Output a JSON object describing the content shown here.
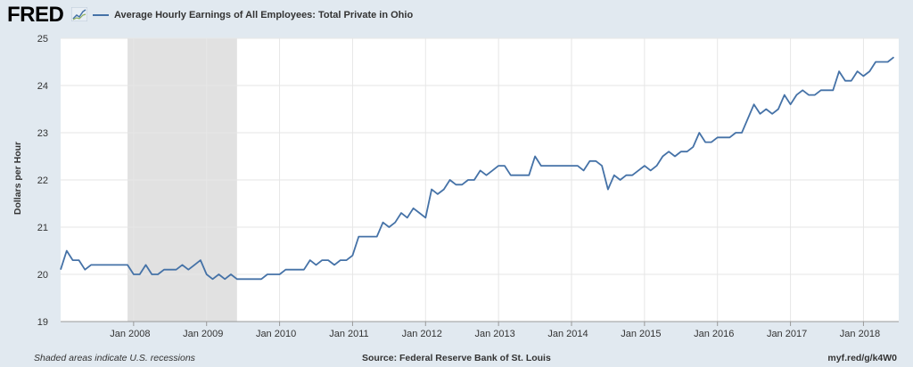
{
  "header": {
    "logo": "FRED",
    "legend_label": "Average Hourly Earnings of All Employees: Total Private in Ohio"
  },
  "footer": {
    "note": "Shaded areas indicate U.S. recessions",
    "source": "Source: Federal Reserve Bank of St. Louis",
    "link": "myf.red/g/k4W0"
  },
  "colors": {
    "series": "#4572a7",
    "recession": "#e1e1e1",
    "background": "#e1e9f0",
    "plot": "#ffffff",
    "grid": "#e6e6e6"
  },
  "chart_data": {
    "type": "line",
    "title": "",
    "xlabel": "",
    "ylabel": "Dollars per Hour",
    "ylim": [
      19,
      25
    ],
    "yticks": [
      "19",
      "20",
      "21",
      "22",
      "23",
      "24",
      "25"
    ],
    "xticks": [
      "Jan 2008",
      "Jan 2009",
      "Jan 2010",
      "Jan 2011",
      "Jan 2012",
      "Jan 2013",
      "Jan 2014",
      "Jan 2015",
      "Jan 2016",
      "Jan 2017",
      "Jan 2018"
    ],
    "grid": true,
    "legend": "top-left",
    "recessions": [
      {
        "start": "2007-12",
        "end": "2009-06"
      }
    ],
    "series": [
      {
        "name": "Average Hourly Earnings of All Employees: Total Private in Ohio",
        "start": "2007-01",
        "frequency": "monthly",
        "values": [
          20.1,
          20.5,
          20.3,
          20.3,
          20.1,
          20.2,
          20.2,
          20.2,
          20.2,
          20.2,
          20.2,
          20.2,
          20.0,
          20.0,
          20.2,
          20.0,
          20.0,
          20.1,
          20.1,
          20.1,
          20.2,
          20.1,
          20.2,
          20.3,
          20.0,
          19.9,
          20.0,
          19.9,
          20.0,
          19.9,
          19.9,
          19.9,
          19.9,
          19.9,
          20.0,
          20.0,
          20.0,
          20.1,
          20.1,
          20.1,
          20.1,
          20.3,
          20.2,
          20.3,
          20.3,
          20.2,
          20.3,
          20.3,
          20.4,
          20.8,
          20.8,
          20.8,
          20.8,
          21.1,
          21.0,
          21.1,
          21.3,
          21.2,
          21.4,
          21.3,
          21.2,
          21.8,
          21.7,
          21.8,
          22.0,
          21.9,
          21.9,
          22.0,
          22.0,
          22.2,
          22.1,
          22.2,
          22.3,
          22.3,
          22.1,
          22.1,
          22.1,
          22.1,
          22.5,
          22.3,
          22.3,
          22.3,
          22.3,
          22.3,
          22.3,
          22.3,
          22.2,
          22.4,
          22.4,
          22.3,
          21.8,
          22.1,
          22.0,
          22.1,
          22.1,
          22.2,
          22.3,
          22.2,
          22.3,
          22.5,
          22.6,
          22.5,
          22.6,
          22.6,
          22.7,
          23.0,
          22.8,
          22.8,
          22.9,
          22.9,
          22.9,
          23.0,
          23.0,
          23.3,
          23.6,
          23.4,
          23.5,
          23.4,
          23.5,
          23.8,
          23.6,
          23.8,
          23.9,
          23.8,
          23.8,
          23.9,
          23.9,
          23.9,
          24.3,
          24.1,
          24.1,
          24.3,
          24.2,
          24.3,
          24.5,
          24.5,
          24.5,
          24.6
        ]
      }
    ]
  }
}
